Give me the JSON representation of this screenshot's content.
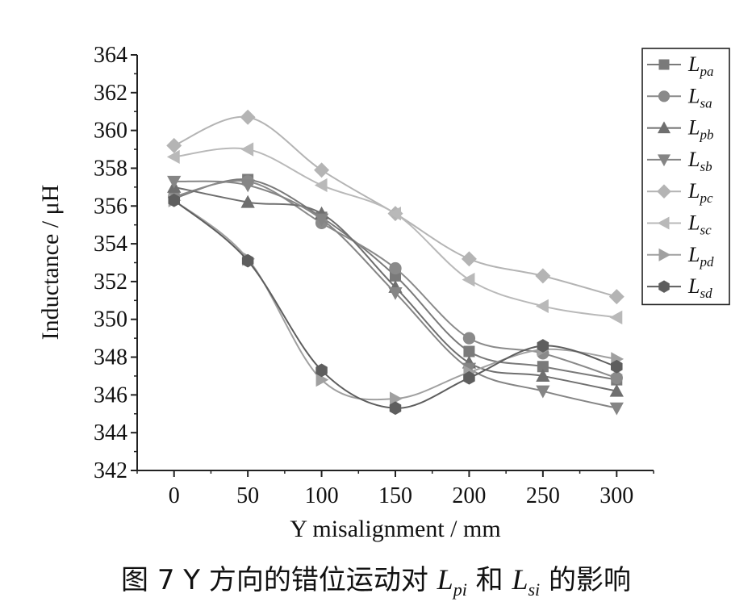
{
  "chart_data": {
    "type": "line",
    "xlabel": "Y misalignment / mm",
    "ylabel": "Inductance / μH",
    "x": [
      0,
      50,
      100,
      150,
      200,
      250,
      300
    ],
    "xticks": [
      "0",
      "50",
      "100",
      "150",
      "200",
      "250",
      "300"
    ],
    "yticks": [
      "342",
      "344",
      "346",
      "348",
      "350",
      "352",
      "354",
      "356",
      "358",
      "360",
      "362",
      "364"
    ],
    "xlim": [
      -25,
      325
    ],
    "ylim": [
      342,
      364
    ],
    "legend_position": "top-right",
    "series": [
      {
        "name": "L",
        "sub": "pa",
        "marker": "square",
        "color": "#7a7a7a",
        "values": [
          356.4,
          357.4,
          355.4,
          352.3,
          348.3,
          347.5,
          346.8
        ]
      },
      {
        "name": "L",
        "sub": "sa",
        "marker": "circle",
        "color": "#8a8a8a",
        "values": [
          356.5,
          357.3,
          355.1,
          352.7,
          349.0,
          348.2,
          346.9
        ]
      },
      {
        "name": "L",
        "sub": "pb",
        "marker": "triangle-up",
        "color": "#6f6f6f",
        "values": [
          357.0,
          356.2,
          355.6,
          351.7,
          347.7,
          347.0,
          346.2
        ]
      },
      {
        "name": "L",
        "sub": "sb",
        "marker": "triangle-down",
        "color": "#858585",
        "values": [
          357.3,
          357.1,
          355.3,
          351.4,
          347.4,
          346.2,
          345.3
        ]
      },
      {
        "name": "L",
        "sub": "pc",
        "marker": "diamond",
        "color": "#b4b4b4",
        "values": [
          359.2,
          360.7,
          357.9,
          355.6,
          353.2,
          352.3,
          351.2
        ]
      },
      {
        "name": "L",
        "sub": "sc",
        "marker": "triangle-left",
        "color": "#b9b9b9",
        "values": [
          358.6,
          359.0,
          357.1,
          355.6,
          352.1,
          350.7,
          350.1
        ]
      },
      {
        "name": "L",
        "sub": "pd",
        "marker": "triangle-right",
        "color": "#a0a0a0",
        "values": [
          356.3,
          353.2,
          346.8,
          345.8,
          347.2,
          348.4,
          347.9
        ]
      },
      {
        "name": "L",
        "sub": "sd",
        "marker": "hexagon",
        "color": "#5e5e5e",
        "values": [
          356.3,
          353.1,
          347.3,
          345.3,
          346.9,
          348.6,
          347.5
        ]
      }
    ]
  },
  "caption": {
    "prefix": "图 7   Y 方向的错位运动对 ",
    "sym1": "L",
    "sub1": "pi",
    "middle": " 和 ",
    "sym2": "L",
    "sub2": "si",
    "suffix": " 的影响"
  }
}
